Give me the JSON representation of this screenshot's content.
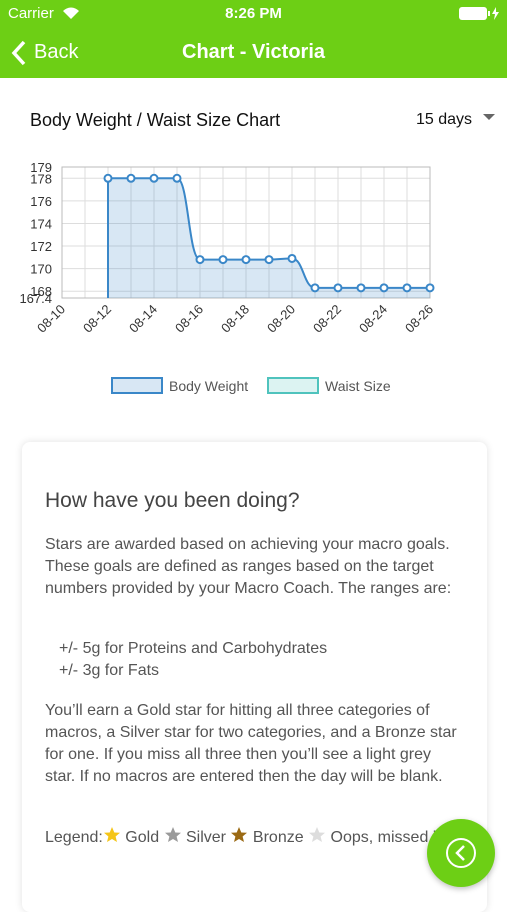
{
  "status_bar": {
    "carrier": "Carrier",
    "time": "8:26 PM"
  },
  "nav_bar": {
    "back": "Back",
    "title": "Chart - Victoria"
  },
  "chart_header": {
    "title": "Body Weight / Waist Size Chart",
    "range": "15 days"
  },
  "chart_data": {
    "type": "line",
    "categories": [
      "08-10",
      null,
      "08-12",
      null,
      "08-14",
      null,
      "08-16",
      null,
      "08-18",
      null,
      "08-20",
      null,
      "08-22",
      null,
      "08-24",
      null,
      "08-26"
    ],
    "series": [
      {
        "name": "Body Weight",
        "color": "#3a87c8",
        "values": [
          null,
          null,
          178,
          178,
          178,
          178,
          170.8,
          170.8,
          170.8,
          170.8,
          170.9,
          168.3,
          168.3,
          168.3,
          168.3,
          168.3,
          168.3
        ]
      },
      {
        "name": "Waist Size",
        "color": "#4fc3bd",
        "values": [
          null,
          null,
          null,
          null,
          null,
          null,
          null,
          null,
          null,
          null,
          null,
          null,
          null,
          null,
          null,
          null,
          null
        ]
      }
    ],
    "ylim": [
      167.4,
      179
    ],
    "yticks": [
      167.4,
      168,
      170,
      172,
      174,
      176,
      178,
      179
    ],
    "grid": true
  },
  "card": {
    "title": "How have you been doing?",
    "intro": "Stars are awarded based on achieving your macro goals. These goals are defined as ranges based on the target numbers provided by your Macro Coach. The ranges are:",
    "ranges": [
      "+/- 5g for Proteins and Carbohydrates",
      "+/- 3g for Fats"
    ],
    "details": "You’ll earn a Gold star for hitting all three categories of macros, a Silver star for two categories, and a Bronze star for one. If you miss all three then you’ll see a light grey star. If no macros are entered then the day will be blank.",
    "legend": {
      "label": "Legend:",
      "items": [
        "Gold",
        "Silver",
        "Bronze",
        "Oops, missed it"
      ]
    }
  }
}
